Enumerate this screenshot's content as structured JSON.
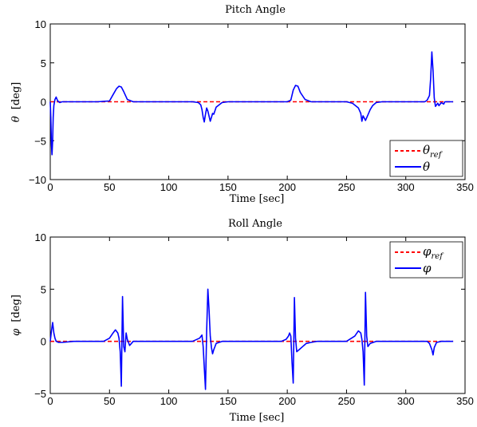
{
  "chart_data": [
    {
      "type": "line",
      "title": "Pitch Angle",
      "xlabel": "Time [sec]",
      "ylabel_symbol": "θ",
      "ylabel_unit": "[deg]",
      "xlim": [
        0,
        350
      ],
      "ylim": [
        -10,
        10
      ],
      "xticks": [
        "0",
        "50",
        "100",
        "150",
        "200",
        "250",
        "300",
        "350"
      ],
      "yticks": [
        "−10",
        "−5",
        "0",
        "5",
        "10"
      ],
      "xtick_values": [
        0,
        50,
        100,
        150,
        200,
        250,
        300,
        350
      ],
      "ytick_values": [
        -10,
        -5,
        0,
        5,
        10
      ],
      "legend_position": "bottom-right",
      "legend": [
        {
          "symbol": "θ",
          "subscript": "ref",
          "style": "dashed",
          "color": "#ff0000"
        },
        {
          "symbol": "θ",
          "subscript": "",
          "style": "solid",
          "color": "#0000ff"
        }
      ],
      "series": [
        {
          "name": "θref",
          "color": "#ff0000",
          "style": "dashed",
          "x": [
            0,
            340
          ],
          "y": [
            0,
            0
          ]
        },
        {
          "name": "θ",
          "color": "#0000ff",
          "style": "solid",
          "x": [
            0,
            0.5,
            1,
            1.5,
            2,
            2.5,
            3,
            4,
            5,
            6,
            7,
            8,
            10,
            20,
            40,
            50,
            53,
            56,
            58,
            60,
            62,
            65,
            70,
            120,
            125,
            127,
            128,
            129,
            130,
            131,
            132,
            133,
            135,
            136,
            137,
            138,
            140,
            145,
            150,
            190,
            200,
            203,
            205,
            207,
            209,
            211,
            215,
            220,
            250,
            255,
            260,
            262,
            263,
            264,
            266,
            268,
            270,
            272,
            275,
            280,
            310,
            316,
            318,
            320,
            321,
            322,
            323,
            324,
            325,
            327,
            328,
            330,
            332,
            333,
            336,
            340
          ],
          "y": [
            0,
            -2,
            -5.5,
            -6.8,
            -5,
            -2,
            -0.5,
            0.3,
            0.6,
            0.2,
            0,
            -0.1,
            0,
            0,
            0,
            0.1,
            0.9,
            1.7,
            2,
            1.9,
            1.3,
            0.3,
            0,
            0,
            -0.1,
            -0.4,
            -1,
            -2,
            -2.6,
            -1.6,
            -0.8,
            -1.2,
            -2.5,
            -2,
            -1.5,
            -1.6,
            -0.7,
            -0.1,
            0,
            0,
            0,
            0.2,
            1.5,
            2.1,
            2,
            1.2,
            0.3,
            0,
            0,
            -0.2,
            -0.8,
            -1.5,
            -2.5,
            -1.8,
            -2.4,
            -1.7,
            -1,
            -0.5,
            -0.1,
            0,
            0,
            0,
            0.2,
            0.8,
            3,
            6.4,
            4,
            0.5,
            -0.6,
            -0.2,
            -0.5,
            -0.1,
            -0.3,
            0,
            0,
            0
          ]
        }
      ]
    },
    {
      "type": "line",
      "title": "Roll Angle",
      "xlabel": "Time [sec]",
      "ylabel_symbol": "φ",
      "ylabel_unit": "[deg]",
      "xlim": [
        0,
        350
      ],
      "ylim": [
        -5,
        10
      ],
      "xticks": [
        "0",
        "50",
        "100",
        "150",
        "200",
        "250",
        "300",
        "350"
      ],
      "yticks": [
        "−5",
        "0",
        "5",
        "10"
      ],
      "xtick_values": [
        0,
        50,
        100,
        150,
        200,
        250,
        300,
        350
      ],
      "ytick_values": [
        -5,
        0,
        5,
        10
      ],
      "legend_position": "top-right",
      "legend": [
        {
          "symbol": "φ",
          "subscript": "ref",
          "style": "dashed",
          "color": "#ff0000"
        },
        {
          "symbol": "φ",
          "subscript": "",
          "style": "solid",
          "color": "#0000ff"
        }
      ],
      "series": [
        {
          "name": "φref",
          "color": "#ff0000",
          "style": "dashed",
          "x": [
            0,
            340
          ],
          "y": [
            0,
            0
          ]
        },
        {
          "name": "φ",
          "color": "#0000ff",
          "style": "solid",
          "x": [
            0,
            1,
            2,
            3,
            4,
            5,
            7,
            10,
            20,
            45,
            50,
            53,
            55,
            57,
            58,
            59,
            60,
            61,
            62,
            63,
            64,
            65,
            67,
            70,
            80,
            120,
            126,
            128,
            129,
            130,
            131,
            132,
            133,
            134,
            135,
            136,
            137,
            138,
            140,
            145,
            150,
            195,
            199,
            201,
            202,
            203,
            204,
            205,
            206,
            207,
            208,
            210,
            213,
            216,
            220,
            225,
            250,
            257,
            260,
            262,
            263,
            264,
            265,
            266,
            267,
            268,
            270,
            275,
            280,
            318,
            320,
            322,
            323,
            324,
            326,
            330,
            340
          ],
          "y": [
            0,
            1,
            1.8,
            0.8,
            0.3,
            0,
            -0.1,
            -0.1,
            0,
            0,
            0.3,
            0.8,
            1.1,
            0.8,
            0.3,
            -1,
            -4.3,
            4.3,
            -0.5,
            -1,
            0.8,
            0.2,
            -0.4,
            0,
            0,
            0,
            0.3,
            0.6,
            -0.5,
            -2.5,
            -4.6,
            1,
            5,
            3,
            0.5,
            -0.6,
            -1.2,
            -0.8,
            -0.2,
            0,
            0,
            0,
            0.2,
            0.5,
            0.8,
            0.5,
            -2,
            -4,
            4.2,
            0.3,
            -1,
            -0.8,
            -0.5,
            -0.2,
            -0.1,
            0,
            0,
            0.5,
            1,
            0.8,
            0.2,
            -1,
            -4.2,
            4.7,
            0.5,
            -0.5,
            -0.2,
            0,
            0,
            0,
            -0.2,
            -0.8,
            -1.3,
            -0.6,
            -0.1,
            0,
            0
          ]
        }
      ]
    }
  ]
}
